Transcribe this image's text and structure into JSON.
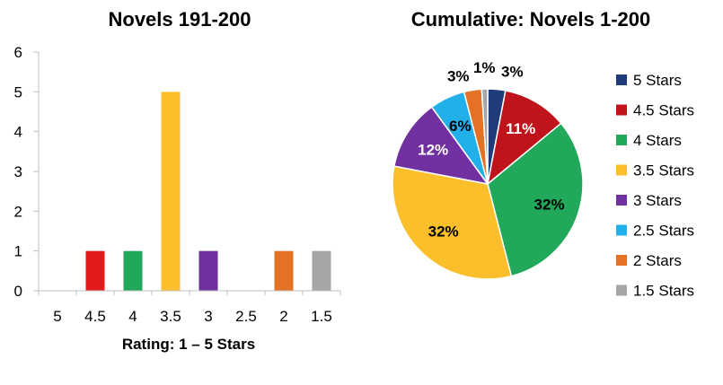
{
  "chart_data": [
    {
      "type": "bar",
      "title": "Novels 191-200",
      "xlabel": "Rating: 1 – 5 Stars",
      "ylabel": "",
      "categories": [
        "5",
        "4.5",
        "4",
        "3.5",
        "3",
        "2.5",
        "2",
        "1.5"
      ],
      "values": [
        0,
        1,
        1,
        5,
        1,
        0,
        1,
        1
      ],
      "colors": [
        "#1f3b7a",
        "#e31a1c",
        "#22a85a",
        "#fcbf2c",
        "#7030a0",
        "#21b0ea",
        "#e57124",
        "#a6a6a6"
      ],
      "ylim": [
        0,
        6
      ],
      "yticks": [
        "0",
        "1",
        "2",
        "3",
        "4",
        "5",
        "6"
      ],
      "grid": false,
      "legend": "none"
    },
    {
      "type": "pie",
      "title": "Cumulative: Novels 1-200",
      "labels": [
        "5 Stars",
        "4.5 Stars",
        "4 Stars",
        "3.5 Stars",
        "3 Stars",
        "2.5 Stars",
        "2 Stars",
        "1.5 Stars"
      ],
      "values": [
        3,
        11,
        32,
        32,
        12,
        6,
        3,
        1
      ],
      "value_labels": [
        "3%",
        "11%",
        "32%",
        "32%",
        "12%",
        "6%",
        "3%",
        "1%"
      ],
      "colors": [
        "#1f3b7a",
        "#c0141d",
        "#22a85a",
        "#fcbf2c",
        "#7030a0",
        "#21b0ea",
        "#e57124",
        "#a6a6a6"
      ],
      "label_colors": [
        "#000000",
        "#ffffff",
        "#000000",
        "#000000",
        "#ffffff",
        "#000000",
        "#000000",
        "#000000"
      ],
      "legend": "right"
    }
  ]
}
